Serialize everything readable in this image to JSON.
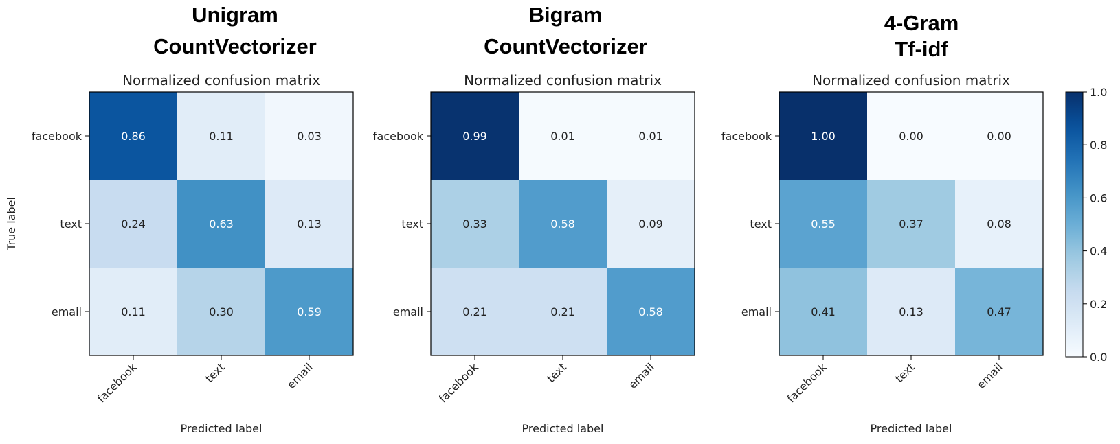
{
  "chart_data": [
    {
      "type": "heatmap",
      "heading": [
        "Unigram",
        "CountVectorizer"
      ],
      "title": "Normalized confusion matrix",
      "xlabel": "Predicted label",
      "ylabel": "True label",
      "x_categories": [
        "facebook",
        "text",
        "email"
      ],
      "y_categories": [
        "facebook",
        "text",
        "email"
      ],
      "values": [
        [
          0.86,
          0.11,
          0.03
        ],
        [
          0.24,
          0.63,
          0.13
        ],
        [
          0.11,
          0.3,
          0.59
        ]
      ],
      "value_labels": [
        [
          "0.86",
          "0.11",
          "0.03"
        ],
        [
          "0.24",
          "0.63",
          "0.13"
        ],
        [
          "0.11",
          "0.30",
          "0.59"
        ]
      ]
    },
    {
      "type": "heatmap",
      "heading": [
        "Bigram",
        "CountVectorizer"
      ],
      "title": "Normalized confusion matrix",
      "xlabel": "Predicted label",
      "ylabel": "",
      "x_categories": [
        "facebook",
        "text",
        "email"
      ],
      "y_categories": [
        "facebook",
        "text",
        "email"
      ],
      "values": [
        [
          0.99,
          0.01,
          0.01
        ],
        [
          0.33,
          0.58,
          0.09
        ],
        [
          0.21,
          0.21,
          0.58
        ]
      ],
      "value_labels": [
        [
          "0.99",
          "0.01",
          "0.01"
        ],
        [
          "0.33",
          "0.58",
          "0.09"
        ],
        [
          "0.21",
          "0.21",
          "0.58"
        ]
      ]
    },
    {
      "type": "heatmap",
      "heading": [
        "4-Gram",
        "Tf-idf"
      ],
      "title": "Normalized confusion matrix",
      "xlabel": "Predicted label",
      "ylabel": "",
      "x_categories": [
        "facebook",
        "text",
        "email"
      ],
      "y_categories": [
        "facebook",
        "text",
        "email"
      ],
      "values": [
        [
          1.0,
          0.0,
          0.0
        ],
        [
          0.55,
          0.37,
          0.08
        ],
        [
          0.41,
          0.13,
          0.47
        ]
      ],
      "value_labels": [
        [
          "1.00",
          "0.00",
          "0.00"
        ],
        [
          "0.55",
          "0.37",
          "0.08"
        ],
        [
          "0.41",
          "0.13",
          "0.47"
        ]
      ]
    }
  ],
  "colorbar": {
    "ticks": [
      "1.0",
      "0.8",
      "0.6",
      "0.4",
      "0.2",
      "0.0"
    ],
    "range": [
      0,
      1
    ],
    "colormap": "Blues",
    "color_low": "#f7fbff",
    "color_high": "#08306b"
  }
}
